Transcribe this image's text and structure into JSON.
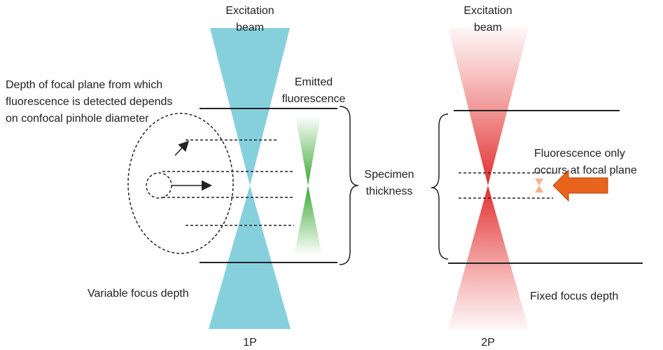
{
  "left": {
    "beam_label": [
      "Excitation",
      "beam"
    ],
    "pinhole_note": [
      "Depth of focal plane from which",
      "fluorescence is detected depends",
      "on confocal pinhole diameter"
    ],
    "emission_label": [
      "Emitted",
      "fluorescence"
    ],
    "focus_label": "Variable focus depth",
    "panel_label": "1P"
  },
  "center": {
    "specimen_label": [
      "Specimen",
      "thickness"
    ]
  },
  "right": {
    "beam_label": [
      "Excitation",
      "beam"
    ],
    "fluorescence_note": [
      "Fluorescence only",
      "occurs at focal plane"
    ],
    "focus_label": "Fixed focus depth",
    "panel_label": "2P"
  }
}
